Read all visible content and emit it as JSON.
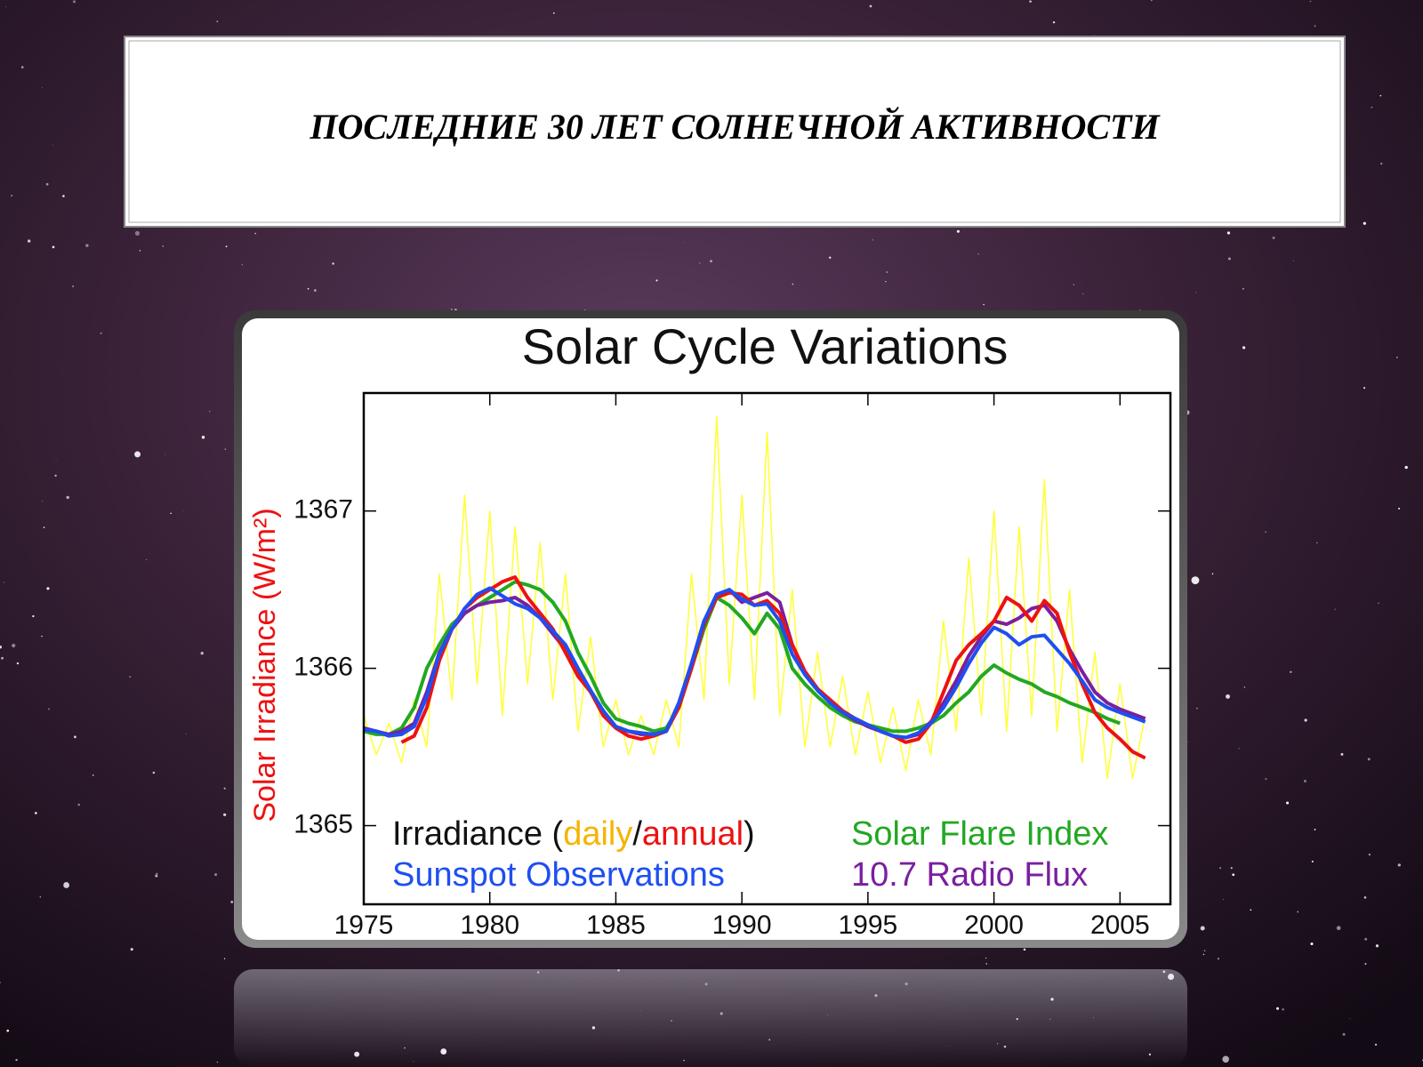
{
  "slide_title": "ПОСЛЕДНИЕ 30 ЛЕТ СОЛНЕЧНОЙ АКТИВНОСТИ",
  "chart_data": {
    "type": "line",
    "title": "Solar Cycle Variations",
    "ylabel": "Solar Irradiance (W/m²)",
    "xlim": [
      1975,
      2007
    ],
    "xticks": [
      1975,
      1980,
      1985,
      1990,
      1995,
      2000,
      2005
    ],
    "ylim": [
      1364.5,
      1367.75
    ],
    "yticks": [
      1365,
      1366,
      1367
    ],
    "legend_text": [
      "Irradiance (",
      "/",
      ")"
    ],
    "x": [
      1975,
      1975.5,
      1976,
      1976.5,
      1977,
      1977.5,
      1978,
      1978.5,
      1979,
      1979.5,
      1980,
      1980.5,
      1981,
      1981.5,
      1982,
      1982.5,
      1983,
      1983.5,
      1984,
      1984.5,
      1985,
      1985.5,
      1986,
      1986.5,
      1987,
      1987.5,
      1988,
      1988.5,
      1989,
      1989.5,
      1990,
      1990.5,
      1991,
      1991.5,
      1992,
      1992.5,
      1993,
      1993.5,
      1994,
      1994.5,
      1995,
      1995.5,
      1996,
      1996.5,
      1997,
      1997.5,
      1998,
      1998.5,
      1999,
      1999.5,
      2000,
      2000.5,
      2001,
      2001.5,
      2002,
      2002.5,
      2003,
      2003.5,
      2004,
      2004.5,
      2005,
      2005.5,
      2006
    ],
    "series": [
      {
        "name": "daily",
        "color": "#ffff33",
        "label_color": "#f5b400",
        "width": 1.5,
        "values": [
          1365.7,
          1365.45,
          1365.65,
          1365.4,
          1365.8,
          1365.5,
          1366.6,
          1365.8,
          1367.1,
          1365.9,
          1367.0,
          1365.7,
          1366.9,
          1365.9,
          1366.8,
          1365.8,
          1366.6,
          1365.6,
          1366.2,
          1365.5,
          1365.8,
          1365.45,
          1365.7,
          1365.45,
          1365.8,
          1365.5,
          1366.6,
          1365.8,
          1367.6,
          1365.9,
          1367.1,
          1365.8,
          1367.5,
          1365.7,
          1366.5,
          1365.5,
          1366.1,
          1365.5,
          1365.95,
          1365.45,
          1365.85,
          1365.4,
          1365.75,
          1365.35,
          1365.8,
          1365.45,
          1366.3,
          1365.6,
          1366.7,
          1365.7,
          1367.0,
          1365.6,
          1366.9,
          1365.7,
          1367.2,
          1365.6,
          1366.5,
          1365.4,
          1366.1,
          1365.3,
          1365.9,
          1365.3,
          1365.7
        ]
      },
      {
        "name": "Solar Flare Index",
        "color": "#22a822",
        "label_color": "#22a822",
        "width": 4,
        "values": [
          1365.6,
          1365.58,
          1365.58,
          1365.62,
          1365.75,
          1366.0,
          1366.15,
          1366.28,
          1366.35,
          1366.4,
          1366.45,
          1366.5,
          1366.55,
          1366.53,
          1366.5,
          1366.42,
          1366.3,
          1366.1,
          1365.95,
          1365.78,
          1365.68,
          1365.65,
          1365.63,
          1365.6,
          1365.62,
          1365.75,
          1366.0,
          1366.25,
          1366.45,
          1366.4,
          1366.32,
          1366.22,
          1366.35,
          1366.25,
          1366.0,
          1365.9,
          1365.82,
          1365.75,
          1365.7,
          1365.66,
          1365.64,
          1365.62,
          1365.6,
          1365.6,
          1365.62,
          1365.65,
          1365.7,
          1365.78,
          1365.85,
          1365.95,
          1366.02,
          1365.97,
          1365.93,
          1365.9,
          1365.85,
          1365.82,
          1365.78,
          1365.75,
          1365.72,
          1365.68,
          1365.65,
          null,
          null
        ]
      },
      {
        "name": "10.7 Radio Flux",
        "color": "#7a1fa0",
        "label_color": "#7a1fa0",
        "width": 4,
        "values": [
          1365.62,
          1365.6,
          1365.58,
          1365.6,
          1365.65,
          1365.85,
          1366.1,
          1366.25,
          1366.35,
          1366.4,
          1366.42,
          1366.43,
          1366.45,
          1366.4,
          1366.32,
          1366.22,
          1366.12,
          1365.98,
          1365.85,
          1365.72,
          1365.63,
          1365.6,
          1365.58,
          1365.58,
          1365.6,
          1365.78,
          1366.03,
          1366.3,
          1366.45,
          1366.5,
          1366.42,
          1366.45,
          1366.48,
          1366.42,
          1366.15,
          1365.98,
          1365.87,
          1365.78,
          1365.72,
          1365.67,
          1365.63,
          1365.6,
          1365.57,
          1365.56,
          1365.58,
          1365.66,
          1365.78,
          1365.92,
          1366.08,
          1366.2,
          1366.3,
          1366.28,
          1366.32,
          1366.38,
          1366.4,
          1366.3,
          1366.12,
          1365.98,
          1365.85,
          1365.78,
          1365.74,
          1365.71,
          1365.68
        ]
      },
      {
        "name": "annual",
        "color": "#ee1111",
        "label_color": "#ee1111",
        "width": 4,
        "values": [
          null,
          null,
          null,
          1365.53,
          1365.57,
          1365.75,
          1366.05,
          1366.25,
          1366.38,
          1366.45,
          1366.5,
          1366.55,
          1366.58,
          1366.45,
          1366.35,
          1366.25,
          1366.1,
          1365.95,
          1365.85,
          1365.7,
          1365.62,
          1365.57,
          1365.55,
          1365.57,
          1365.6,
          1365.75,
          1366.0,
          1366.28,
          1366.45,
          1366.48,
          1366.47,
          1366.4,
          1366.43,
          1366.35,
          1366.15,
          1365.98,
          1365.87,
          1365.8,
          1365.73,
          1365.68,
          1365.64,
          1365.6,
          1365.57,
          1365.53,
          1365.55,
          1365.65,
          1365.85,
          1366.05,
          1366.15,
          1366.22,
          1366.3,
          1366.45,
          1366.4,
          1366.3,
          1366.43,
          1366.35,
          1366.1,
          1365.9,
          1365.72,
          1365.62,
          1365.55,
          1365.47,
          1365.43
        ]
      },
      {
        "name": "Sunspot Observations",
        "color": "#1f4ff0",
        "label_color": "#1f4ff0",
        "width": 4,
        "values": [
          1365.61,
          1365.6,
          1365.57,
          1365.58,
          1365.63,
          1365.82,
          1366.09,
          1366.25,
          1366.38,
          1366.47,
          1366.51,
          1366.46,
          1366.41,
          1366.38,
          1366.32,
          1366.24,
          1366.15,
          1366.0,
          1365.86,
          1365.73,
          1365.63,
          1365.6,
          1365.59,
          1365.58,
          1365.6,
          1365.78,
          1366.03,
          1366.3,
          1366.47,
          1366.5,
          1366.44,
          1366.4,
          1366.41,
          1366.3,
          1366.09,
          1365.96,
          1365.86,
          1365.78,
          1365.72,
          1365.68,
          1365.64,
          1365.6,
          1365.57,
          1365.56,
          1365.59,
          1365.65,
          1365.75,
          1365.88,
          1366.03,
          1366.16,
          1366.26,
          1366.22,
          1366.15,
          1366.2,
          1366.21,
          1366.12,
          1366.03,
          1365.92,
          1365.8,
          1365.75,
          1365.72,
          1365.69,
          1365.66
        ]
      }
    ]
  }
}
